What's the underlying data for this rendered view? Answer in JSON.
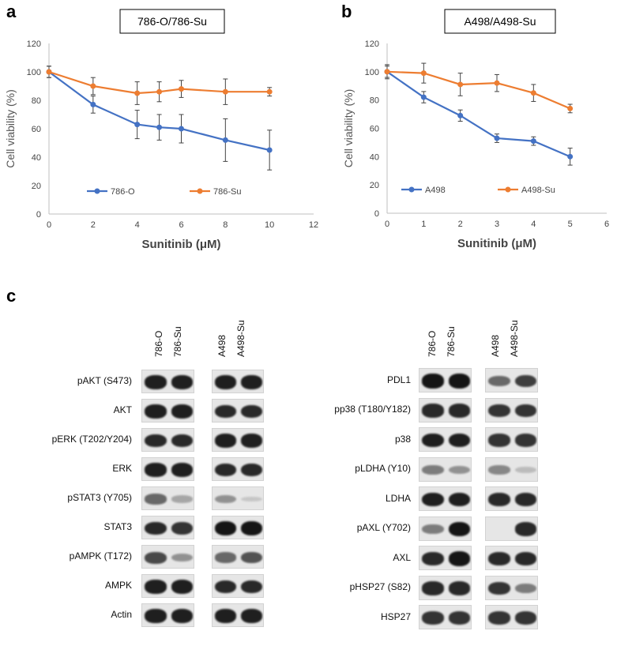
{
  "panels": {
    "a": {
      "label": "a",
      "chart_data": {
        "type": "line",
        "title": "786-O/786-Su",
        "xlabel": "Sunitinib (μM)",
        "ylabel": "Cell viability (%)",
        "xlim": [
          0,
          12
        ],
        "ylim": [
          0,
          120
        ],
        "xticks": [
          "0",
          "2",
          "4",
          "6",
          "8",
          "10",
          "12"
        ],
        "yticks": [
          "0",
          "20",
          "40",
          "60",
          "80",
          "100",
          "120"
        ],
        "legend_position": "bottom",
        "series": [
          {
            "name": "786-O",
            "color": "#4472C4",
            "x": [
              0,
              2,
              4,
              5,
              6,
              8,
              10
            ],
            "y": [
              100,
              77,
              63,
              61,
              60,
              52,
              45
            ],
            "err": [
              4,
              6,
              10,
              9,
              10,
              15,
              14
            ]
          },
          {
            "name": "786-Su",
            "color": "#ED7D31",
            "x": [
              0,
              2,
              4,
              5,
              6,
              8,
              10
            ],
            "y": [
              100,
              90,
              85,
              86,
              88,
              86,
              86
            ],
            "err": [
              4,
              6,
              8,
              7,
              6,
              9,
              3
            ]
          }
        ]
      }
    },
    "b": {
      "label": "b",
      "chart_data": {
        "type": "line",
        "title": "A498/A498-Su",
        "xlabel": "Sunitinib (μM)",
        "ylabel": "Cell viability (%)",
        "xlim": [
          0,
          6
        ],
        "ylim": [
          0,
          120
        ],
        "xticks": [
          "0",
          "1",
          "2",
          "3",
          "4",
          "5",
          "6"
        ],
        "yticks": [
          "0",
          "20",
          "40",
          "60",
          "80",
          "100",
          "120"
        ],
        "legend_position": "bottom",
        "series": [
          {
            "name": "A498",
            "color": "#4472C4",
            "x": [
              0,
              1,
              2,
              3,
              4,
              5
            ],
            "y": [
              100,
              82,
              69,
              53,
              51,
              40
            ],
            "err": [
              4,
              4,
              4,
              3,
              3,
              6
            ]
          },
          {
            "name": "A498-Su",
            "color": "#ED7D31",
            "x": [
              0,
              1,
              2,
              3,
              4,
              5
            ],
            "y": [
              100,
              99,
              91,
              92,
              85,
              74
            ],
            "err": [
              5,
              7,
              8,
              6,
              6,
              3
            ]
          }
        ]
      }
    },
    "c": {
      "label": "c",
      "lanes": [
        "786-O",
        "786-Su",
        "A498",
        "A498-Su"
      ],
      "blot_left": [
        {
          "label": "pAKT (S473)",
          "i": [
            0.95,
            0.95,
            0.95,
            0.95
          ]
        },
        {
          "label": "AKT",
          "i": [
            0.95,
            0.95,
            0.9,
            0.9
          ]
        },
        {
          "label": "pERK (T202/Y204)",
          "i": [
            0.9,
            0.9,
            0.95,
            0.95
          ]
        },
        {
          "label": "ERK",
          "i": [
            0.95,
            0.95,
            0.9,
            0.9
          ]
        },
        {
          "label": "pSTAT3 (Y705)",
          "i": [
            0.6,
            0.3,
            0.4,
            0.05
          ]
        },
        {
          "label": "STAT3",
          "i": [
            0.9,
            0.85,
            1.0,
            1.0
          ]
        },
        {
          "label": "pAMPK (T172)",
          "i": [
            0.75,
            0.4,
            0.6,
            0.7
          ]
        },
        {
          "label": "AMPK",
          "i": [
            0.95,
            0.95,
            0.9,
            0.9
          ]
        },
        {
          "label": "Actin",
          "i": [
            0.95,
            0.95,
            0.95,
            0.95
          ]
        }
      ],
      "blot_right": [
        {
          "label": "PDL1",
          "i": [
            1.0,
            1.0,
            0.6,
            0.8
          ]
        },
        {
          "label": "pp38 (T180/Y182)",
          "i": [
            0.9,
            0.9,
            0.85,
            0.85
          ]
        },
        {
          "label": "p38",
          "i": [
            0.95,
            0.95,
            0.85,
            0.85
          ]
        },
        {
          "label": "pLDHA (Y10)",
          "i": [
            0.5,
            0.4,
            0.45,
            0.2
          ]
        },
        {
          "label": "LDHA",
          "i": [
            0.95,
            0.95,
            0.9,
            0.9
          ]
        },
        {
          "label": "pAXL (Y702)",
          "i": [
            0.5,
            1.0,
            0.0,
            0.9
          ]
        },
        {
          "label": "AXL",
          "i": [
            0.9,
            1.0,
            0.9,
            0.9
          ]
        },
        {
          "label": "pHSP27 (S82)",
          "i": [
            0.9,
            0.9,
            0.85,
            0.5
          ]
        },
        {
          "label": "HSP27",
          "i": [
            0.85,
            0.85,
            0.85,
            0.85
          ]
        }
      ]
    }
  }
}
